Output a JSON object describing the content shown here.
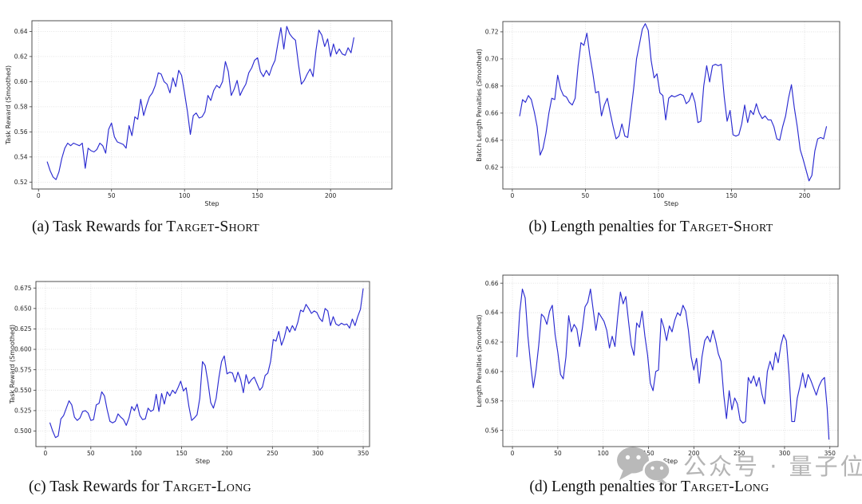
{
  "watermark": {
    "icon": "wechat-icon",
    "label": "公众号 · 量子位"
  },
  "chart_data": [
    {
      "id": "a",
      "type": "line",
      "caption_prefix": "(a) Task Rewards for ",
      "caption_sc": "Target-Short",
      "xlabel": "Step",
      "ylabel": "Task Reward (Smoothed)",
      "line_color": "#2b2bd1",
      "grid": true,
      "legend": "none",
      "x_domain": [
        -4.5,
        242
      ],
      "y_domain": [
        0.5145,
        0.6485
      ],
      "x_tick_values": [
        0,
        50,
        100,
        150,
        200
      ],
      "x_tick_labels": [
        "0",
        "50",
        "100",
        "150",
        "200"
      ],
      "y_tick_values": [
        0.52,
        0.54,
        0.56,
        0.58,
        0.6,
        0.62,
        0.64
      ],
      "y_tick_labels": [
        "0.52",
        "0.54",
        "0.56",
        "0.58",
        "0.60",
        "0.62",
        "0.64"
      ],
      "x": [
        6,
        8,
        10,
        12,
        14,
        16,
        18,
        20,
        22,
        24,
        26,
        28,
        30,
        32,
        34,
        36,
        38,
        40,
        42,
        44,
        46,
        48,
        50,
        52,
        54,
        56,
        58,
        60,
        62,
        64,
        66,
        68,
        70,
        72,
        74,
        76,
        78,
        80,
        82,
        84,
        86,
        88,
        90,
        92,
        94,
        96,
        98,
        100,
        102,
        104,
        106,
        108,
        110,
        112,
        114,
        116,
        118,
        120,
        122,
        124,
        126,
        128,
        130,
        132,
        134,
        136,
        138,
        140,
        142,
        144,
        146,
        148,
        150,
        152,
        154,
        156,
        158,
        160,
        162,
        164,
        166,
        168,
        170,
        172,
        174,
        176,
        178,
        180,
        182,
        184,
        186,
        188,
        190,
        192,
        194,
        196,
        198,
        200,
        202,
        204,
        206,
        208,
        210,
        212,
        214,
        216
      ],
      "y": [
        0.536,
        0.529,
        0.524,
        0.522,
        0.528,
        0.539,
        0.547,
        0.551,
        0.549,
        0.551,
        0.55,
        0.549,
        0.551,
        0.531,
        0.547,
        0.545,
        0.544,
        0.546,
        0.551,
        0.549,
        0.543,
        0.562,
        0.567,
        0.556,
        0.552,
        0.551,
        0.55,
        0.547,
        0.565,
        0.557,
        0.572,
        0.57,
        0.586,
        0.573,
        0.581,
        0.588,
        0.591,
        0.597,
        0.607,
        0.606,
        0.6,
        0.598,
        0.591,
        0.603,
        0.596,
        0.609,
        0.605,
        0.591,
        0.576,
        0.558,
        0.573,
        0.575,
        0.571,
        0.572,
        0.576,
        0.589,
        0.585,
        0.593,
        0.597,
        0.595,
        0.6,
        0.616,
        0.608,
        0.589,
        0.594,
        0.601,
        0.589,
        0.594,
        0.598,
        0.607,
        0.611,
        0.617,
        0.619,
        0.608,
        0.604,
        0.609,
        0.605,
        0.612,
        0.617,
        0.631,
        0.643,
        0.626,
        0.644,
        0.638,
        0.635,
        0.633,
        0.614,
        0.598,
        0.601,
        0.606,
        0.61,
        0.604,
        0.625,
        0.641,
        0.637,
        0.628,
        0.634,
        0.62,
        0.63,
        0.622,
        0.626,
        0.622,
        0.621,
        0.627,
        0.623,
        0.635
      ]
    },
    {
      "id": "b",
      "type": "line",
      "caption_prefix": "(b) Length penalties for ",
      "caption_sc": "Target-Short",
      "xlabel": "Step",
      "ylabel": "Batch Length Penalties (Smoothed)",
      "line_color": "#2b2bd1",
      "grid": true,
      "legend": "none",
      "x_domain": [
        -6.5,
        224
      ],
      "y_domain": [
        0.604,
        0.7276
      ],
      "x_tick_values": [
        0,
        50,
        100,
        150,
        200
      ],
      "x_tick_labels": [
        "0",
        "50",
        "100",
        "150",
        "200"
      ],
      "y_tick_values": [
        0.62,
        0.64,
        0.66,
        0.68,
        0.7,
        0.72
      ],
      "y_tick_labels": [
        "0.62",
        "0.64",
        "0.66",
        "0.68",
        "0.70",
        "0.72"
      ],
      "x": [
        5,
        7,
        9,
        11,
        13,
        15,
        17,
        19,
        21,
        23,
        25,
        27,
        29,
        31,
        33,
        35,
        37,
        39,
        41,
        43,
        45,
        47,
        49,
        51,
        53,
        55,
        57,
        59,
        61,
        63,
        65,
        67,
        69,
        71,
        73,
        75,
        77,
        79,
        81,
        83,
        85,
        87,
        89,
        91,
        93,
        95,
        97,
        99,
        101,
        103,
        105,
        107,
        109,
        111,
        113,
        115,
        117,
        119,
        121,
        123,
        125,
        127,
        129,
        131,
        133,
        135,
        137,
        139,
        141,
        143,
        145,
        147,
        149,
        151,
        153,
        155,
        157,
        159,
        161,
        163,
        165,
        167,
        169,
        171,
        173,
        175,
        177,
        179,
        181,
        183,
        185,
        187,
        189,
        191,
        193,
        195,
        197,
        199,
        201,
        203,
        205,
        207,
        209,
        211,
        213,
        215
      ],
      "y": [
        0.658,
        0.67,
        0.668,
        0.673,
        0.67,
        0.661,
        0.65,
        0.629,
        0.634,
        0.645,
        0.66,
        0.671,
        0.67,
        0.688,
        0.678,
        0.673,
        0.672,
        0.668,
        0.666,
        0.671,
        0.695,
        0.712,
        0.71,
        0.719,
        0.703,
        0.69,
        0.675,
        0.676,
        0.658,
        0.666,
        0.671,
        0.66,
        0.65,
        0.641,
        0.643,
        0.652,
        0.643,
        0.642,
        0.66,
        0.678,
        0.7,
        0.711,
        0.722,
        0.726,
        0.721,
        0.699,
        0.686,
        0.689,
        0.675,
        0.673,
        0.655,
        0.671,
        0.673,
        0.672,
        0.673,
        0.674,
        0.673,
        0.667,
        0.669,
        0.675,
        0.668,
        0.653,
        0.654,
        0.68,
        0.695,
        0.683,
        0.695,
        0.696,
        0.695,
        0.696,
        0.672,
        0.654,
        0.662,
        0.644,
        0.643,
        0.644,
        0.652,
        0.666,
        0.653,
        0.662,
        0.659,
        0.667,
        0.66,
        0.656,
        0.658,
        0.655,
        0.655,
        0.65,
        0.641,
        0.64,
        0.65,
        0.658,
        0.671,
        0.681,
        0.664,
        0.65,
        0.633,
        0.626,
        0.618,
        0.61,
        0.614,
        0.632,
        0.641,
        0.642,
        0.641,
        0.65
      ]
    },
    {
      "id": "c",
      "type": "line",
      "caption_prefix": "(c) Task Rewards for ",
      "caption_sc": "Target-Long",
      "xlabel": "Step",
      "ylabel": "Task Reward (Smoothed)",
      "line_color": "#2b2bd1",
      "grid": true,
      "legend": "none",
      "x_domain": [
        -10.5,
        357
      ],
      "y_domain": [
        0.481,
        0.683
      ],
      "x_tick_values": [
        0,
        50,
        100,
        150,
        200,
        250,
        300,
        350
      ],
      "x_tick_labels": [
        "0",
        "50",
        "100",
        "150",
        "200",
        "250",
        "300",
        "350"
      ],
      "y_tick_values": [
        0.5,
        0.525,
        0.55,
        0.575,
        0.6,
        0.625,
        0.65,
        0.675
      ],
      "y_tick_labels": [
        "0.500",
        "0.525",
        "0.550",
        "0.575",
        "0.600",
        "0.625",
        "0.650",
        "0.675"
      ],
      "x": [
        5,
        8,
        11,
        14,
        17,
        20,
        23,
        26,
        29,
        32,
        35,
        38,
        41,
        44,
        47,
        50,
        53,
        56,
        59,
        62,
        65,
        68,
        71,
        74,
        77,
        80,
        83,
        86,
        89,
        92,
        95,
        98,
        101,
        104,
        107,
        110,
        113,
        116,
        119,
        122,
        125,
        128,
        131,
        134,
        137,
        140,
        143,
        146,
        149,
        152,
        155,
        158,
        161,
        164,
        167,
        170,
        173,
        176,
        179,
        182,
        185,
        188,
        191,
        194,
        197,
        200,
        203,
        206,
        209,
        212,
        215,
        218,
        221,
        224,
        227,
        230,
        233,
        236,
        239,
        242,
        245,
        248,
        251,
        254,
        257,
        260,
        263,
        266,
        269,
        272,
        275,
        278,
        281,
        284,
        287,
        290,
        293,
        296,
        299,
        302,
        305,
        308,
        311,
        314,
        317,
        320,
        323,
        326,
        329,
        332,
        335,
        338,
        341,
        344,
        347,
        350
      ],
      "y": [
        0.51,
        0.5,
        0.492,
        0.494,
        0.515,
        0.519,
        0.528,
        0.537,
        0.532,
        0.517,
        0.513,
        0.516,
        0.524,
        0.525,
        0.522,
        0.513,
        0.514,
        0.532,
        0.534,
        0.548,
        0.543,
        0.526,
        0.512,
        0.51,
        0.512,
        0.521,
        0.517,
        0.514,
        0.507,
        0.516,
        0.53,
        0.525,
        0.533,
        0.519,
        0.514,
        0.515,
        0.528,
        0.524,
        0.526,
        0.545,
        0.524,
        0.546,
        0.533,
        0.548,
        0.543,
        0.55,
        0.546,
        0.553,
        0.561,
        0.549,
        0.553,
        0.53,
        0.513,
        0.516,
        0.52,
        0.54,
        0.585,
        0.58,
        0.56,
        0.535,
        0.528,
        0.54,
        0.565,
        0.585,
        0.592,
        0.57,
        0.572,
        0.571,
        0.56,
        0.572,
        0.563,
        0.547,
        0.569,
        0.558,
        0.563,
        0.566,
        0.558,
        0.55,
        0.554,
        0.568,
        0.571,
        0.585,
        0.612,
        0.61,
        0.622,
        0.605,
        0.614,
        0.628,
        0.621,
        0.629,
        0.623,
        0.633,
        0.648,
        0.646,
        0.655,
        0.65,
        0.644,
        0.647,
        0.645,
        0.638,
        0.634,
        0.65,
        0.647,
        0.629,
        0.64,
        0.631,
        0.629,
        0.632,
        0.63,
        0.631,
        0.626,
        0.637,
        0.629,
        0.64,
        0.649,
        0.674
      ]
    },
    {
      "id": "d",
      "type": "line",
      "caption_prefix": "(d) Length penalties for ",
      "caption_sc": "Target-Long",
      "xlabel": "Step",
      "ylabel": "Length Penalties (Smoothed)",
      "line_color": "#2b2bd1",
      "grid": true,
      "legend": "none",
      "x_domain": [
        -10.6,
        359
      ],
      "y_domain": [
        0.549,
        0.6655
      ],
      "x_tick_values": [
        0,
        50,
        100,
        150,
        200,
        250,
        300,
        350
      ],
      "x_tick_labels": [
        "0",
        "50",
        "100",
        "150",
        "200",
        "250",
        "300",
        "350"
      ],
      "y_tick_values": [
        0.56,
        0.58,
        0.6,
        0.62,
        0.64,
        0.66
      ],
      "y_tick_labels": [
        "0.56",
        "0.58",
        "0.60",
        "0.62",
        "0.64",
        "0.66"
      ],
      "x": [
        5,
        8,
        11,
        14,
        17,
        20,
        23,
        26,
        29,
        32,
        35,
        38,
        41,
        44,
        47,
        50,
        53,
        56,
        59,
        62,
        65,
        68,
        71,
        74,
        77,
        80,
        83,
        86,
        89,
        92,
        95,
        98,
        101,
        104,
        107,
        110,
        113,
        116,
        119,
        122,
        125,
        128,
        131,
        134,
        137,
        140,
        143,
        146,
        149,
        152,
        155,
        158,
        161,
        164,
        167,
        170,
        173,
        176,
        179,
        182,
        185,
        188,
        191,
        194,
        197,
        200,
        203,
        206,
        209,
        212,
        215,
        218,
        221,
        224,
        227,
        230,
        233,
        236,
        239,
        242,
        245,
        248,
        251,
        254,
        257,
        260,
        263,
        266,
        269,
        272,
        275,
        278,
        281,
        284,
        287,
        290,
        293,
        296,
        299,
        302,
        305,
        308,
        311,
        314,
        317,
        320,
        323,
        326,
        329,
        332,
        335,
        338,
        341,
        344,
        347,
        349
      ],
      "y": [
        0.61,
        0.64,
        0.656,
        0.65,
        0.624,
        0.605,
        0.589,
        0.601,
        0.618,
        0.639,
        0.637,
        0.632,
        0.641,
        0.645,
        0.625,
        0.613,
        0.598,
        0.595,
        0.61,
        0.638,
        0.627,
        0.632,
        0.629,
        0.617,
        0.629,
        0.644,
        0.647,
        0.656,
        0.642,
        0.628,
        0.64,
        0.637,
        0.634,
        0.628,
        0.616,
        0.624,
        0.617,
        0.637,
        0.654,
        0.646,
        0.651,
        0.634,
        0.618,
        0.611,
        0.633,
        0.63,
        0.641,
        0.624,
        0.611,
        0.592,
        0.587,
        0.6,
        0.601,
        0.636,
        0.63,
        0.621,
        0.631,
        0.627,
        0.635,
        0.64,
        0.638,
        0.645,
        0.641,
        0.628,
        0.61,
        0.601,
        0.609,
        0.592,
        0.61,
        0.621,
        0.624,
        0.62,
        0.628,
        0.621,
        0.612,
        0.607,
        0.584,
        0.568,
        0.587,
        0.574,
        0.582,
        0.578,
        0.567,
        0.565,
        0.566,
        0.596,
        0.592,
        0.597,
        0.59,
        0.596,
        0.585,
        0.578,
        0.6,
        0.607,
        0.601,
        0.613,
        0.606,
        0.618,
        0.625,
        0.621,
        0.598,
        0.566,
        0.566,
        0.582,
        0.59,
        0.599,
        0.589,
        0.598,
        0.594,
        0.589,
        0.584,
        0.59,
        0.594,
        0.596,
        0.575,
        0.554
      ]
    }
  ]
}
